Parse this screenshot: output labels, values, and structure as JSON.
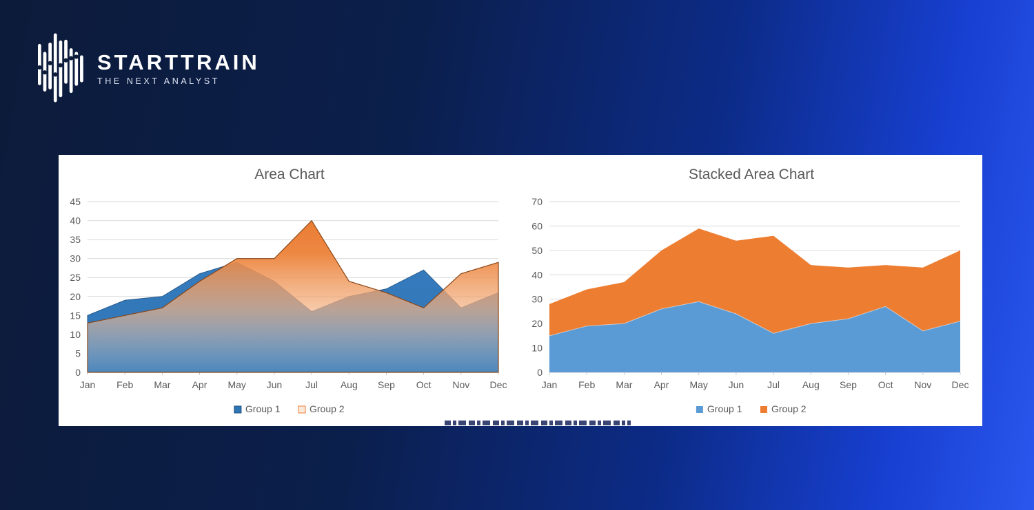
{
  "brand": {
    "name": "STARTTRAIN",
    "tagline": "THE NEXT ANALYST"
  },
  "colors": {
    "background_dark": "#0d1b3a",
    "background_bright": "#2b57ee",
    "panel": "#ffffff",
    "axis_text": "#595959",
    "gridline": "#d9d9d9",
    "area_blue": "#2E75B6",
    "area_orange": "#ED7D31",
    "stacked_blue": "#5B9BD5",
    "stacked_orange": "#ED7D31"
  },
  "chart_data": [
    {
      "type": "area",
      "title": "Area Chart",
      "categories": [
        "Jan",
        "Feb",
        "Mar",
        "Apr",
        "May",
        "Jun",
        "Jul",
        "Aug",
        "Sep",
        "Oct",
        "Nov",
        "Dec"
      ],
      "series": [
        {
          "name": "Group 1",
          "color": "#2E75B6",
          "edge": "#24598C",
          "values": [
            15,
            19,
            20,
            26,
            29,
            24,
            16,
            20,
            22,
            27,
            17,
            21
          ],
          "legend_marker": {
            "fill": "#2E75B6",
            "border": "#1F4E79"
          }
        },
        {
          "name": "Group 2",
          "color": "#ED7D31",
          "edge": "#8A4616",
          "gradient_fade": true,
          "values": [
            13,
            15,
            17,
            24,
            30,
            30,
            40,
            24,
            21,
            17,
            26,
            29
          ],
          "legend_marker": {
            "fill": "#FBE8D9",
            "border": "#ED7D31"
          }
        }
      ],
      "ylim": [
        0,
        45
      ],
      "ystep": 5,
      "grid": true,
      "legend_position": "bottom"
    },
    {
      "type": "stacked-area",
      "title": "Stacked Area Chart",
      "categories": [
        "Jan",
        "Feb",
        "Mar",
        "Apr",
        "May",
        "Jun",
        "Jul",
        "Aug",
        "Sep",
        "Oct",
        "Nov",
        "Dec"
      ],
      "series": [
        {
          "name": "Group 1",
          "color": "#5B9BD5",
          "values": [
            15,
            19,
            20,
            26,
            29,
            24,
            16,
            20,
            22,
            27,
            17,
            21
          ],
          "legend_marker": {
            "fill": "#5B9BD5"
          }
        },
        {
          "name": "Group 2",
          "color": "#ED7D31",
          "values": [
            13,
            15,
            17,
            24,
            30,
            30,
            40,
            24,
            21,
            17,
            26,
            29
          ],
          "legend_marker": {
            "fill": "#ED7D31"
          }
        }
      ],
      "ylim": [
        0,
        70
      ],
      "ystep": 10,
      "grid": true,
      "legend_position": "bottom"
    }
  ]
}
